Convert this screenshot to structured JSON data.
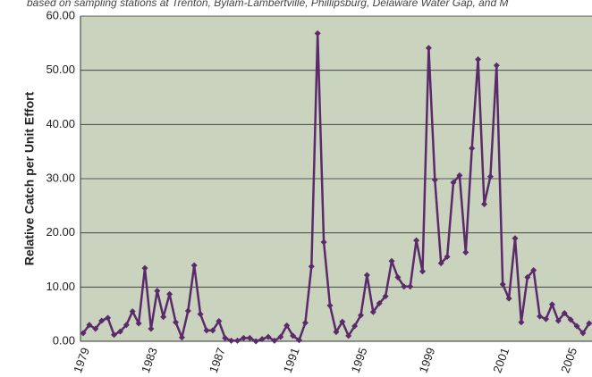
{
  "chart_data": {
    "type": "line",
    "subtitle": "based on sampling stations at Trenton, Bylam-Lambertville, Phillipsburg, Delaware Water Gap, and M",
    "y_label": "Relative Catch per Unit Effort",
    "categories": [
      "1979",
      null,
      null,
      null,
      null,
      null,
      null,
      null,
      null,
      null,
      null,
      "1983",
      null,
      null,
      null,
      null,
      null,
      null,
      null,
      null,
      null,
      null,
      "1987",
      null,
      null,
      null,
      null,
      null,
      null,
      null,
      null,
      null,
      null,
      null,
      "1991",
      null,
      null,
      null,
      null,
      null,
      null,
      null,
      null,
      null,
      null,
      "1995",
      null,
      null,
      null,
      null,
      null,
      null,
      null,
      null,
      null,
      null,
      "1999",
      null,
      null,
      null,
      null,
      null,
      null,
      null,
      null,
      null,
      null,
      null,
      "2001",
      null,
      null,
      null,
      null,
      null,
      null,
      null,
      null,
      null,
      null,
      "2005",
      null,
      null,
      null
    ],
    "series": [
      {
        "color": "#5b2a6b",
        "values": [
          1.5,
          3.0,
          2.3,
          3.8,
          4.3,
          1.2,
          1.8,
          3.0,
          5.5,
          3.3,
          13.5,
          2.3,
          9.3,
          4.5,
          8.7,
          3.5,
          0.7,
          5.6,
          14.0,
          5.0,
          2.0,
          2.0,
          3.7,
          0.6,
          0.1,
          0.1,
          0.6,
          0.6,
          0.0,
          0.4,
          0.8,
          0.1,
          0.8,
          2.9,
          1.0,
          0.2,
          3.4,
          13.8,
          56.8,
          18.3,
          6.6,
          1.7,
          3.6,
          1.0,
          2.8,
          4.8,
          12.2,
          5.4,
          7.0,
          8.3,
          14.8,
          11.8,
          10.1,
          10.1,
          18.6,
          12.9,
          54.1,
          29.8,
          14.4,
          15.6,
          29.3,
          30.6,
          16.4,
          35.6,
          52.0,
          25.3,
          30.4,
          50.9,
          10.5,
          7.9,
          19.0,
          3.5,
          11.8,
          13.1,
          4.6,
          4.1,
          6.8,
          3.8,
          5.2,
          4.0,
          2.8,
          1.5,
          3.3
        ]
      }
    ],
    "ylim": [
      0,
      60
    ],
    "yticks": [
      {
        "value": 0,
        "label": "0.00"
      },
      {
        "value": 10,
        "label": "10.00"
      },
      {
        "value": 20,
        "label": "20.00"
      },
      {
        "value": 30,
        "label": "30.00"
      },
      {
        "value": 40,
        "label": "40.00"
      },
      {
        "value": 50,
        "label": "50.00"
      },
      {
        "value": 60,
        "label": "60.00"
      }
    ],
    "grid": true,
    "background": "#c9d3be"
  }
}
